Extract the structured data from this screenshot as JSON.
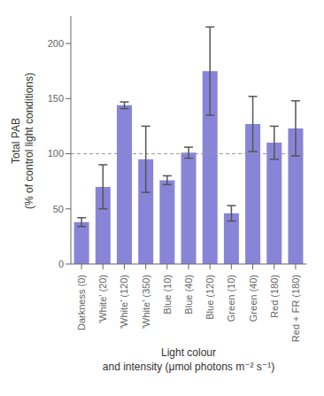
{
  "chart_data": {
    "type": "bar",
    "categories": [
      "Darkness (0)",
      "'White' (20)",
      "'White' (120)",
      "'White' (350)",
      "Blue (10)",
      "Blue (40)",
      "Blue (120)",
      "Green (10)",
      "Green (40)",
      "Red (180)",
      "Red + FR (180)"
    ],
    "values": [
      38,
      70,
      144,
      95,
      76,
      101,
      175,
      46,
      127,
      110,
      123
    ],
    "errors": [
      4,
      20,
      3,
      30,
      4,
      5,
      40,
      7,
      25,
      15,
      25
    ],
    "reference_line": 100,
    "color": "#8884d8",
    "y_label": "Total PAB\n(% of control light conditions)",
    "x_label": "Light colour\nand intensity (μmol photons m⁻² s⁻¹)",
    "ylim": [
      0,
      225
    ],
    "yticks": [
      0,
      50,
      100,
      150,
      200
    ]
  }
}
